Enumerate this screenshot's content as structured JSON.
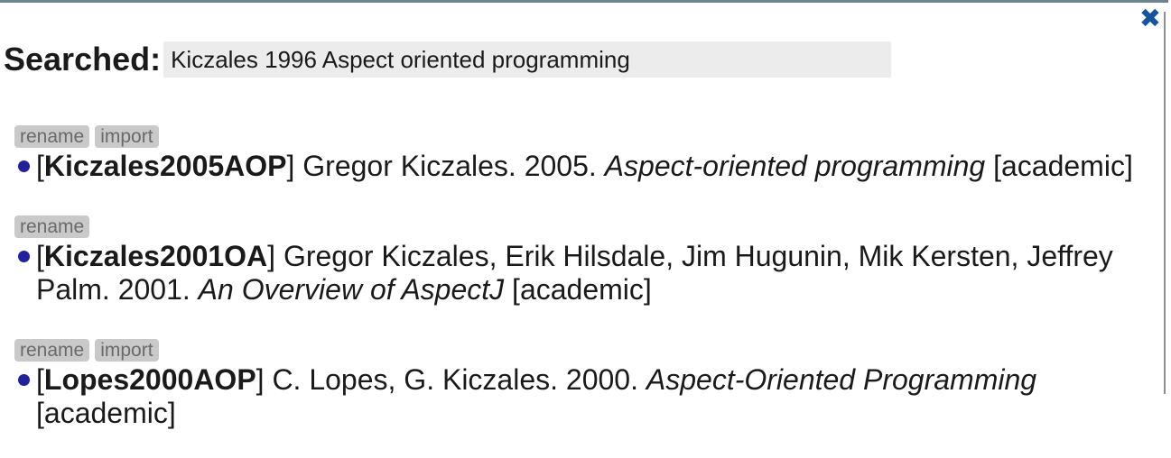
{
  "panel": {
    "searched_label": "Searched:",
    "query": "Kiczales 1996 Aspect oriented programming",
    "close_icon": "✖"
  },
  "colors": {
    "accent_blue": "#15549e",
    "bullet_navy": "#21219b",
    "top_border": "#6d838f",
    "chip_gray": "#c9c9c9",
    "query_box_gray": "#ececec"
  },
  "results": [
    {
      "actions": [
        "rename",
        "import"
      ],
      "bracket_open": "[",
      "key": "Kiczales2005AOP",
      "bracket_close": "]",
      "authors_year": "Gregor Kiczales. 2005.",
      "title": "Aspect-oriented programming",
      "tag": "[academic]"
    },
    {
      "actions": [
        "rename"
      ],
      "bracket_open": "[",
      "key": "Kiczales2001OA",
      "bracket_close": "]",
      "authors_year": "Gregor Kiczales, Erik Hilsdale, Jim Hugunin, Mik Kersten, Jeffrey Palm. 2001.",
      "title": "An Overview of AspectJ",
      "tag": "[academic]"
    },
    {
      "actions": [
        "rename",
        "import"
      ],
      "bracket_open": "[",
      "key": "Lopes2000AOP",
      "bracket_close": "]",
      "authors_year": "C. Lopes, G. Kiczales. 2000.",
      "title": "Aspect-Oriented Programming",
      "tag": "[academic]"
    }
  ]
}
